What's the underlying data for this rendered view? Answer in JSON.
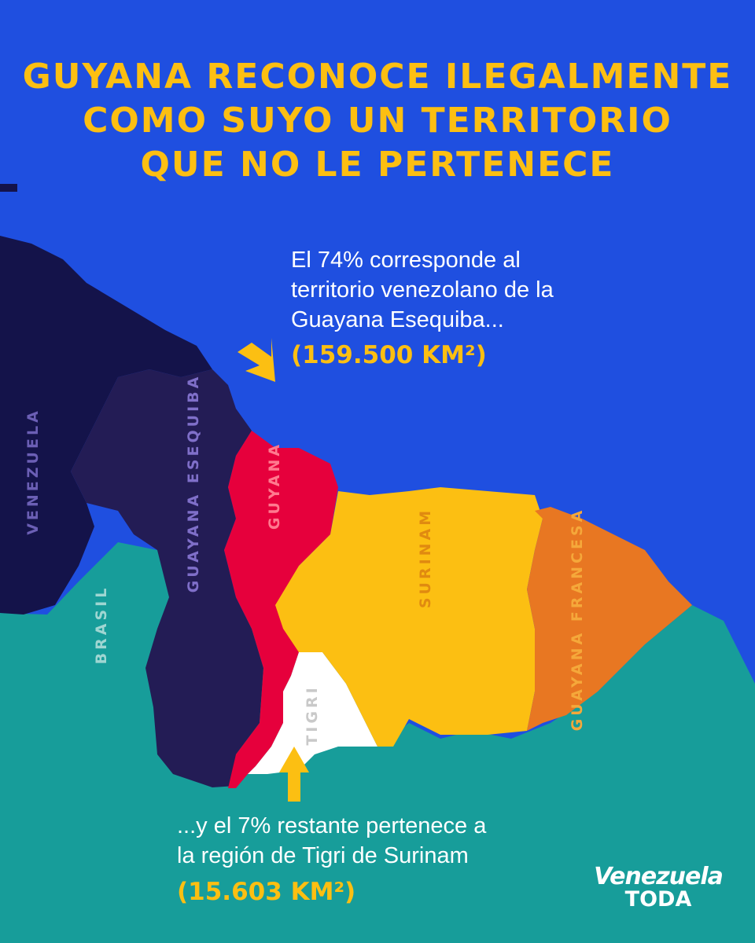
{
  "title": {
    "lines": [
      "GUYANA RECONOCE ILEGALMENTE",
      "COMO SUYO UN TERRITORIO",
      "QUE NO LE PERTENECE"
    ]
  },
  "annotation_top": {
    "lines": [
      "El 74% corresponde al",
      "territorio venezolano de la",
      "Guayana Esequiba..."
    ],
    "area": "(159.500 KM²)"
  },
  "annotation_bottom": {
    "lines": [
      "...y el 7% restante pertenece a",
      "la región de Tigri de Surinam"
    ],
    "area": "(15.603 KM²)"
  },
  "regions": {
    "venezuela": "VENEZUELA",
    "guayana_esequiba": "GUAYANA ESEQUIBA",
    "guyana": "GUYANA",
    "surinam": "SURINAM",
    "guayana_francesa": "GUAYANA FRANCESA",
    "brasil": "BRASIL",
    "tigri": "TIGRI"
  },
  "logo": {
    "line1": "Venezuela",
    "line2": "TODA"
  },
  "colors": {
    "sea": "#1f4fe0",
    "venezuela": "#14134a",
    "guayana_esequiba": "#231c55",
    "guyana": "#e6003c",
    "surinam": "#fcbf12",
    "guayana_francesa": "#e87722",
    "brasil": "#179d9a",
    "tigri": "#ffffff",
    "accent": "#fcbf12"
  }
}
